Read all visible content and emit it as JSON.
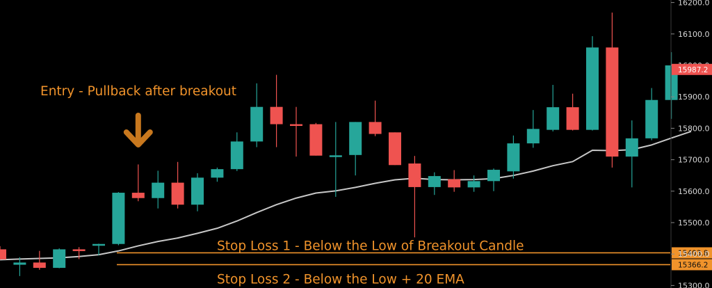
{
  "chart_data": {
    "type": "candlestick",
    "colors": {
      "up": "#26a69a",
      "down": "#ef5350",
      "ema": "#c8c8c8",
      "annotation": "#f0932b",
      "background": "#000000",
      "axis_text": "#d8d8d8"
    },
    "y_axis": {
      "ticks": [
        15300.0,
        15400.0,
        15500.0,
        15600.0,
        15700.0,
        15800.0,
        15900.0,
        16000.0,
        16100.0,
        16200.0
      ],
      "tick_labels": [
        "15300.0",
        "15400.0",
        "15500.0",
        "15600.0",
        "15700.0",
        "15800.0",
        "15900.0",
        "16000.0",
        "16100.0",
        "16200.0"
      ],
      "ylim": [
        15292,
        16208
      ],
      "side": "right"
    },
    "candles": [
      {
        "o": 15415,
        "h": 15425,
        "l": 15382,
        "c": 15383
      },
      {
        "o": 15366,
        "h": 15390,
        "l": 15330,
        "c": 15373
      },
      {
        "o": 15373,
        "h": 15410,
        "l": 15350,
        "c": 15356
      },
      {
        "o": 15356,
        "h": 15418,
        "l": 15355,
        "c": 15415
      },
      {
        "o": 15415,
        "h": 15422,
        "l": 15384,
        "c": 15413
      },
      {
        "o": 15430,
        "h": 15433,
        "l": 15396,
        "c": 15432
      },
      {
        "o": 15432,
        "h": 15597,
        "l": 15428,
        "c": 15595
      },
      {
        "o": 15595,
        "h": 15685,
        "l": 15568,
        "c": 15578
      },
      {
        "o": 15578,
        "h": 15665,
        "l": 15545,
        "c": 15627
      },
      {
        "o": 15627,
        "h": 15693,
        "l": 15545,
        "c": 15557
      },
      {
        "o": 15557,
        "h": 15657,
        "l": 15536,
        "c": 15643
      },
      {
        "o": 15643,
        "h": 15675,
        "l": 15630,
        "c": 15670
      },
      {
        "o": 15670,
        "h": 15787,
        "l": 15664,
        "c": 15758
      },
      {
        "o": 15758,
        "h": 15943,
        "l": 15740,
        "c": 15868
      },
      {
        "o": 15868,
        "h": 15970,
        "l": 15740,
        "c": 15813
      },
      {
        "o": 15813,
        "h": 15868,
        "l": 15710,
        "c": 15808
      },
      {
        "o": 15813,
        "h": 15817,
        "l": 15713,
        "c": 15713
      },
      {
        "o": 15713,
        "h": 15820,
        "l": 15582,
        "c": 15714
      },
      {
        "o": 15715,
        "h": 15820,
        "l": 15650,
        "c": 15820
      },
      {
        "o": 15820,
        "h": 15888,
        "l": 15775,
        "c": 15782
      },
      {
        "o": 15787,
        "h": 15787,
        "l": 15683,
        "c": 15683
      },
      {
        "o": 15688,
        "h": 15712,
        "l": 15453,
        "c": 15613
      },
      {
        "o": 15613,
        "h": 15660,
        "l": 15588,
        "c": 15648
      },
      {
        "o": 15638,
        "h": 15667,
        "l": 15598,
        "c": 15612
      },
      {
        "o": 15612,
        "h": 15650,
        "l": 15598,
        "c": 15632
      },
      {
        "o": 15632,
        "h": 15672,
        "l": 15600,
        "c": 15668
      },
      {
        "o": 15663,
        "h": 15777,
        "l": 15640,
        "c": 15752
      },
      {
        "o": 15752,
        "h": 15858,
        "l": 15738,
        "c": 15798
      },
      {
        "o": 15795,
        "h": 15938,
        "l": 15790,
        "c": 15867
      },
      {
        "o": 15867,
        "h": 15910,
        "l": 15793,
        "c": 15795
      },
      {
        "o": 15795,
        "h": 16093,
        "l": 15793,
        "c": 16057
      },
      {
        "o": 16057,
        "h": 16168,
        "l": 15675,
        "c": 15710
      },
      {
        "o": 15710,
        "h": 15825,
        "l": 15612,
        "c": 15768
      },
      {
        "o": 15768,
        "h": 15928,
        "l": 15762,
        "c": 15890
      },
      {
        "o": 15890,
        "h": 16042,
        "l": 15830,
        "c": 16000
      },
      {
        "o": 15992,
        "h": 15992,
        "l": 15982,
        "c": 15987.2
      }
    ],
    "ema": [
      15382,
      15384,
      15386,
      15388,
      15392,
      15398,
      15410,
      15426,
      15440,
      15451,
      15466,
      15482,
      15505,
      15532,
      15557,
      15578,
      15594,
      15601,
      15612,
      15625,
      15636,
      15641,
      15637,
      15636,
      15637,
      15640,
      15650,
      15664,
      15681,
      15694,
      15730,
      15729,
      15732,
      15747,
      15769,
      15790
    ],
    "current_price_label": "15987.2",
    "horizontal_lines": [
      {
        "value": 15403.8,
        "label": "15403.8",
        "text": "Stop Loss 1 - Below the Low of Breakout Candle"
      },
      {
        "value": 15366.2,
        "label": "15366.2",
        "text": "Stop Loss 2 - Below the Low + 20 EMA"
      }
    ],
    "annotation": {
      "text": "Entry - Pullback after breakout",
      "arrow": "down-arrow-icon",
      "target_candle_index": 7
    }
  }
}
